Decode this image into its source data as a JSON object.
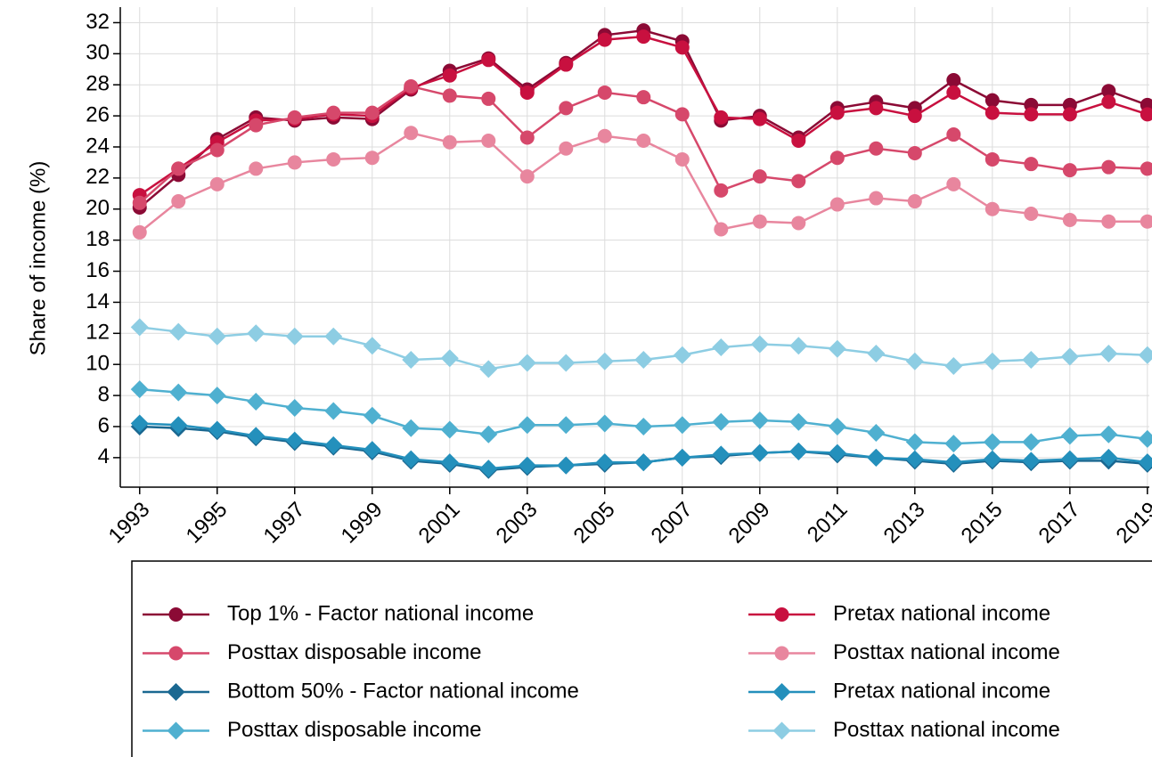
{
  "chart_data": {
    "type": "line",
    "y_label": "Share of income (%)",
    "xlim": [
      1992.5,
      2019.05
    ],
    "xticks": [
      1993,
      1995,
      1997,
      1999,
      2001,
      2003,
      2005,
      2007,
      2009,
      2011,
      2013,
      2015,
      2017,
      2019
    ],
    "ylim": [
      2.1,
      33
    ],
    "yticks": [
      4,
      6,
      8,
      10,
      12,
      14,
      16,
      18,
      20,
      22,
      24,
      26,
      28,
      30,
      32
    ],
    "grid": true,
    "legend": "bottom",
    "x": [
      1993,
      1994,
      1995,
      1996,
      1997,
      1998,
      1999,
      2000,
      2001,
      2002,
      2003,
      2004,
      2005,
      2006,
      2007,
      2008,
      2009,
      2010,
      2011,
      2012,
      2013,
      2014,
      2015,
      2016,
      2017,
      2018,
      2019
    ],
    "series": [
      {
        "name": "Top 1% - Factor national income",
        "color": "#8b0a35",
        "marker": "circle",
        "values": [
          20.1,
          22.2,
          24.5,
          25.9,
          25.7,
          25.9,
          25.8,
          27.7,
          28.9,
          29.7,
          27.7,
          29.4,
          31.2,
          31.5,
          30.8,
          25.7,
          26.0,
          24.6,
          26.5,
          26.9,
          26.5,
          28.3,
          27.0,
          26.7,
          26.7,
          27.6,
          26.7
        ]
      },
      {
        "name": "Pretax national income",
        "color": "#c8103f",
        "marker": "circle",
        "values": [
          20.9,
          22.6,
          24.3,
          25.7,
          25.8,
          26.1,
          26.0,
          27.8,
          28.6,
          29.6,
          27.5,
          29.3,
          30.9,
          31.1,
          30.4,
          25.9,
          25.8,
          24.4,
          26.2,
          26.5,
          26.0,
          27.5,
          26.2,
          26.1,
          26.1,
          26.9,
          26.1
        ]
      },
      {
        "name": "Posttax disposable income",
        "color": "#d6486b",
        "marker": "circle",
        "values": [
          20.4,
          22.6,
          23.8,
          25.4,
          25.9,
          26.2,
          26.2,
          27.9,
          27.3,
          27.1,
          24.6,
          26.5,
          27.5,
          27.2,
          26.1,
          21.2,
          22.1,
          21.8,
          23.3,
          23.9,
          23.6,
          24.8,
          23.2,
          22.9,
          22.5,
          22.7,
          22.6
        ]
      },
      {
        "name": "Posttax national income",
        "color": "#e8869e",
        "marker": "circle",
        "values": [
          18.5,
          20.5,
          21.6,
          22.6,
          23.0,
          23.2,
          23.3,
          24.9,
          24.3,
          24.4,
          22.1,
          23.9,
          24.7,
          24.4,
          23.2,
          18.7,
          19.2,
          19.1,
          20.3,
          20.7,
          20.5,
          21.6,
          20.0,
          19.7,
          19.3,
          19.2,
          19.2
        ]
      },
      {
        "name": "Bottom 50% - Factor national income",
        "color": "#1a6891",
        "marker": "diamond",
        "values": [
          6.0,
          5.9,
          5.7,
          5.3,
          5.0,
          4.7,
          4.4,
          3.8,
          3.6,
          3.2,
          3.4,
          3.5,
          3.6,
          3.7,
          4.0,
          4.1,
          4.3,
          4.4,
          4.2,
          4.0,
          3.8,
          3.6,
          3.8,
          3.7,
          3.8,
          3.8,
          3.6
        ]
      },
      {
        "name": "Pretax national income",
        "color": "#2490bc",
        "marker": "diamond",
        "values": [
          6.2,
          6.1,
          5.8,
          5.4,
          5.1,
          4.8,
          4.5,
          3.9,
          3.7,
          3.3,
          3.5,
          3.5,
          3.7,
          3.7,
          4.0,
          4.2,
          4.3,
          4.4,
          4.3,
          4.0,
          3.9,
          3.7,
          3.9,
          3.8,
          3.9,
          4.0,
          3.7
        ]
      },
      {
        "name": "Posttax disposable income",
        "color": "#4fb0d0",
        "marker": "diamond",
        "values": [
          8.4,
          8.2,
          8.0,
          7.6,
          7.2,
          7.0,
          6.7,
          5.9,
          5.8,
          5.5,
          6.1,
          6.1,
          6.2,
          6.0,
          6.1,
          6.3,
          6.4,
          6.3,
          6.0,
          5.6,
          5.0,
          4.9,
          5.0,
          5.0,
          5.4,
          5.5,
          5.2
        ]
      },
      {
        "name": "Posttax national income",
        "color": "#8dcde3",
        "marker": "diamond",
        "values": [
          12.4,
          12.1,
          11.8,
          12.0,
          11.8,
          11.8,
          11.2,
          10.3,
          10.4,
          9.7,
          10.1,
          10.1,
          10.2,
          10.3,
          10.6,
          11.1,
          11.3,
          11.2,
          11.0,
          10.7,
          10.2,
          9.9,
          10.2,
          10.3,
          10.5,
          10.7,
          10.6
        ]
      }
    ]
  }
}
